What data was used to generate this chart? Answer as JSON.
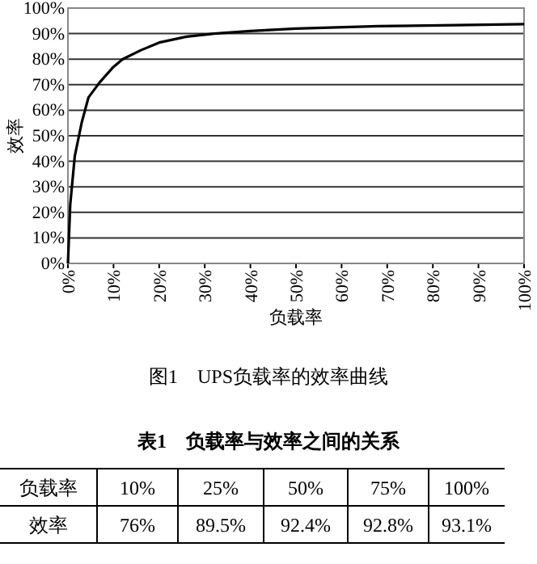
{
  "chart_data": [
    {
      "type": "line",
      "xlabel": "负载率",
      "ylabel": "效率",
      "annotations": [
        "图1　UPS负载率的效率曲线",
        "表1　负载率与效率之间的关系",
        "负载率",
        "10%",
        "25%",
        "50%",
        "75%",
        "100%",
        "效率",
        "76%",
        "89.5%",
        "92.4%",
        "92.8%",
        "93.1%"
      ],
      "x": [
        0,
        0.5,
        1.5,
        3,
        4.5,
        7,
        10,
        12,
        16,
        20,
        26,
        32,
        40,
        50,
        68,
        85,
        100
      ],
      "series": [
        {
          "color": "#000000",
          "values": [
            0,
            23,
            42,
            55,
            65,
            71,
            77,
            80,
            83.5,
            86.5,
            88.8,
            90,
            91,
            92,
            92.9,
            93.3,
            93.7
          ]
        }
      ],
      "xlim": [
        0,
        100
      ],
      "ylim": [
        0,
        100
      ],
      "xticks": [
        {
          "value": 0,
          "label": "0%"
        },
        {
          "value": 10,
          "label": "10%"
        },
        {
          "value": 20,
          "label": "20%"
        },
        {
          "value": 30,
          "label": "30%"
        },
        {
          "value": 40,
          "label": "40%"
        },
        {
          "value": 50,
          "label": "50%"
        },
        {
          "value": 60,
          "label": "60%"
        },
        {
          "value": 70,
          "label": "70%"
        },
        {
          "value": 80,
          "label": "80%"
        },
        {
          "value": 90,
          "label": "90%"
        },
        {
          "value": 100,
          "label": "100%"
        }
      ],
      "yticks": [
        {
          "value": 0,
          "label": "0%"
        },
        {
          "value": 10,
          "label": "10%"
        },
        {
          "value": 20,
          "label": "20%"
        },
        {
          "value": 30,
          "label": "30%"
        },
        {
          "value": 40,
          "label": "40%"
        },
        {
          "value": 50,
          "label": "50%"
        },
        {
          "value": 60,
          "label": "60%"
        },
        {
          "value": 70,
          "label": "70%"
        },
        {
          "value": 80,
          "label": "80%"
        },
        {
          "value": 90,
          "label": "90%"
        },
        {
          "value": 100,
          "label": "100%"
        }
      ],
      "grid": "y",
      "marker": "none",
      "line_style": "solid"
    }
  ]
}
